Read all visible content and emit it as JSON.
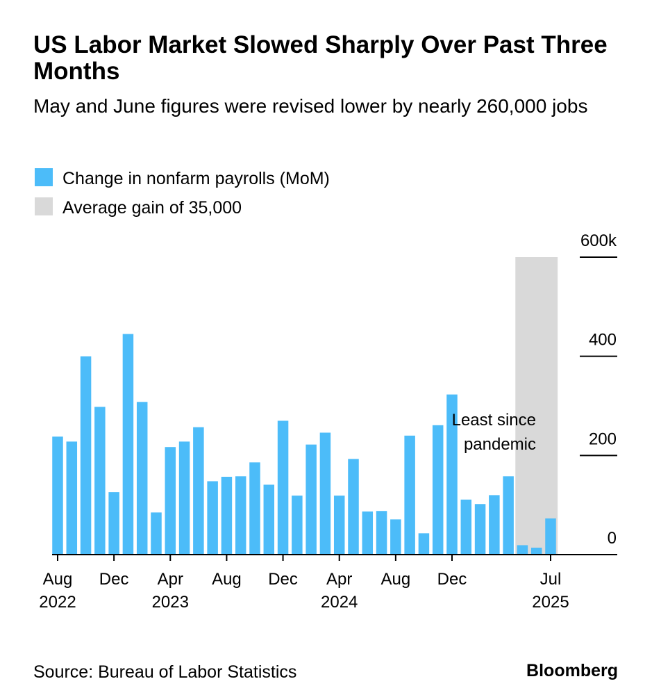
{
  "chart_data": {
    "type": "bar",
    "title": "US Labor Market Slowed Sharply Over Past Three Months",
    "subtitle": "May and June figures were revised lower by nearly 260,000 jobs",
    "x": [
      "2022-08",
      "2022-09",
      "2022-10",
      "2022-11",
      "2022-12",
      "2023-01",
      "2023-02",
      "2023-03",
      "2023-04",
      "2023-05",
      "2023-06",
      "2023-07",
      "2023-08",
      "2023-09",
      "2023-10",
      "2023-11",
      "2023-12",
      "2024-01",
      "2024-02",
      "2024-03",
      "2024-04",
      "2024-05",
      "2024-06",
      "2024-07",
      "2024-08",
      "2024-09",
      "2024-10",
      "2024-11",
      "2024-12",
      "2025-01",
      "2025-02",
      "2025-03",
      "2025-04",
      "2025-05",
      "2025-06",
      "2025-07"
    ],
    "series": [
      {
        "name": "Change in nonfarm payrolls (MoM)",
        "color": "#4cbcf9",
        "values": [
          238,
          228,
          400,
          298,
          126,
          445,
          308,
          85,
          217,
          228,
          257,
          148,
          157,
          158,
          186,
          141,
          270,
          119,
          222,
          246,
          119,
          193,
          87,
          88,
          71,
          240,
          43,
          261,
          323,
          111,
          102,
          120,
          158,
          19,
          14,
          73
        ]
      }
    ],
    "highlight": {
      "name": "Average gain of 35,000",
      "color": "#d9d9d9",
      "from": "2025-05",
      "to": "2025-07"
    },
    "annotation": [
      "Least since",
      "pandemic"
    ],
    "ylim": [
      0,
      600
    ],
    "yticks": [
      0,
      200,
      400,
      {
        "value": 600,
        "label": "600k"
      }
    ],
    "xticks": [
      {
        "value": "2022-08",
        "label": "Aug",
        "year": "2022"
      },
      {
        "value": "2022-12",
        "label": "Dec"
      },
      {
        "value": "2023-04",
        "label": "Apr",
        "year": "2023"
      },
      {
        "value": "2023-08",
        "label": "Aug"
      },
      {
        "value": "2023-12",
        "label": "Dec"
      },
      {
        "value": "2024-04",
        "label": "Apr",
        "year": "2024"
      },
      {
        "value": "2024-08",
        "label": "Aug"
      },
      {
        "value": "2024-12",
        "label": "Dec"
      },
      {
        "value": "2025-07",
        "label": "Jul",
        "year": "2025"
      }
    ],
    "source": "Source: Bureau of Labor Statistics",
    "brand": "Bloomberg"
  }
}
